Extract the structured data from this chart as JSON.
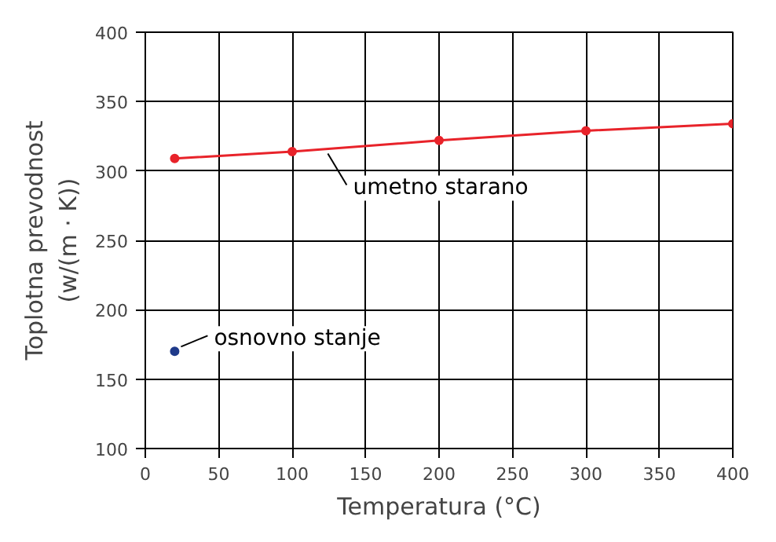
{
  "chart_data": {
    "type": "line",
    "xlabel": "Temperatura (°C)",
    "ylabel": "Toplotna prevodnost\n(w/(m · K))",
    "xlim": [
      0,
      400
    ],
    "ylim": [
      100,
      400
    ],
    "xticks": [
      0,
      50,
      100,
      150,
      200,
      250,
      300,
      350,
      400
    ],
    "yticks": [
      100,
      150,
      200,
      250,
      300,
      350,
      400
    ],
    "grid": true,
    "marker": "circle",
    "line_style": "solid",
    "series": [
      {
        "color": "#e8232a",
        "x": [
          20,
          100,
          200,
          300,
          400
        ],
        "values": [
          309,
          314,
          322,
          329,
          334
        ]
      },
      {
        "type": "scatter",
        "color": "#1f3a8a",
        "x": [
          20
        ],
        "values": [
          170
        ]
      }
    ],
    "annotations": [
      {
        "text": "umetno starano",
        "x": 120,
        "y": 316
      },
      {
        "text": "osnovno stanje",
        "x": 20,
        "y": 170
      }
    ]
  }
}
